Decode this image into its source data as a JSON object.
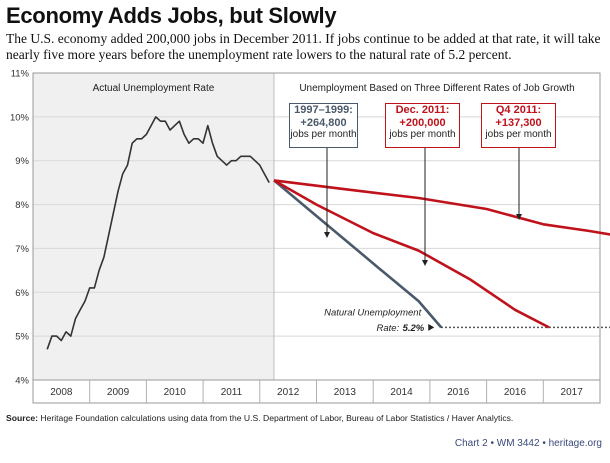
{
  "title": "Economy Adds Jobs, but Slowly",
  "subtitle": "The U.S. economy added 200,000 jobs in December 2011. If jobs continue to be added at that rate, it will take nearly five more years before the unemployment rate lowers to the natural rate of 5.2 percent.",
  "source_label": "Source:",
  "source_text": "Heritage Foundation calculations using data from the U.S. Department of Labor, Bureau of Labor Statistics / Haver Analytics.",
  "credit": {
    "chart": "Chart 2",
    "sep1": "•",
    "wm": "WM 3442",
    "sep2": "•",
    "site": "heritage.org"
  },
  "colors": {
    "actual": "#333333",
    "blue_grey": "#4a5a6a",
    "red": "#c0121b",
    "grid": "#d8d8d8",
    "band": "#ececec"
  },
  "chart_data": {
    "type": "line",
    "ylim": [
      4,
      11
    ],
    "yticks": [
      "4%",
      "5%",
      "6%",
      "7%",
      "8%",
      "9%",
      "10%",
      "11%"
    ],
    "x_categories": [
      "2008",
      "2009",
      "2010",
      "2011",
      "2012",
      "2013",
      "2014",
      "2016",
      "2016",
      "2017"
    ],
    "section_titles": {
      "left": "Actual Unemployment Rate",
      "right": "Unemployment Based on Three Different Rates of Job Growth"
    },
    "actual_series": {
      "start_x": -0.25,
      "step": 0.0833,
      "values": [
        4.7,
        5.0,
        5.0,
        4.9,
        5.1,
        5.0,
        5.4,
        5.6,
        5.8,
        6.1,
        6.1,
        6.5,
        6.8,
        7.3,
        7.8,
        8.3,
        8.7,
        8.9,
        9.4,
        9.5,
        9.5,
        9.6,
        9.8,
        10.0,
        9.9,
        9.9,
        9.7,
        9.8,
        9.9,
        9.6,
        9.4,
        9.5,
        9.5,
        9.4,
        9.8,
        9.4,
        9.1,
        9.0,
        8.9,
        9.0,
        9.0,
        9.1,
        9.1,
        9.1,
        9.0,
        8.9,
        8.7,
        8.5
      ]
    },
    "projections": [
      {
        "name": "1997–1999:",
        "amount": "+264,800",
        "unit": "jobs per month",
        "color": "#4a5a6a",
        "points": [
          [
            3.75,
            8.55
          ],
          [
            4.4,
            7.85
          ],
          [
            5.0,
            7.2
          ],
          [
            5.6,
            6.55
          ],
          [
            6.3,
            5.8
          ],
          [
            6.7,
            5.2
          ]
        ]
      },
      {
        "name": "Dec. 2011:",
        "amount": "+200,000",
        "unit": "jobs per month",
        "color": "#c0121b",
        "points": [
          [
            3.75,
            8.55
          ],
          [
            4.5,
            8.0
          ],
          [
            5.5,
            7.35
          ],
          [
            6.3,
            6.95
          ],
          [
            7.2,
            6.3
          ],
          [
            8.0,
            5.6
          ],
          [
            8.6,
            5.2
          ]
        ]
      },
      {
        "name": "Q4 2011:",
        "amount": "+137,300",
        "unit": "jobs per month",
        "color": "#c0121b",
        "points": [
          [
            3.75,
            8.55
          ],
          [
            5.0,
            8.35
          ],
          [
            6.3,
            8.15
          ],
          [
            7.5,
            7.9
          ],
          [
            8.5,
            7.55
          ],
          [
            9.3,
            7.4
          ],
          [
            10.0,
            7.25
          ],
          [
            10.6,
            7.05
          ]
        ]
      }
    ],
    "natural_rate": {
      "label_line1": "Natural Unemployment",
      "label_line2": "Rate:",
      "value_label": "5.2%",
      "value": 5.2,
      "x_start": 6.7,
      "x_end": 10.45
    }
  }
}
